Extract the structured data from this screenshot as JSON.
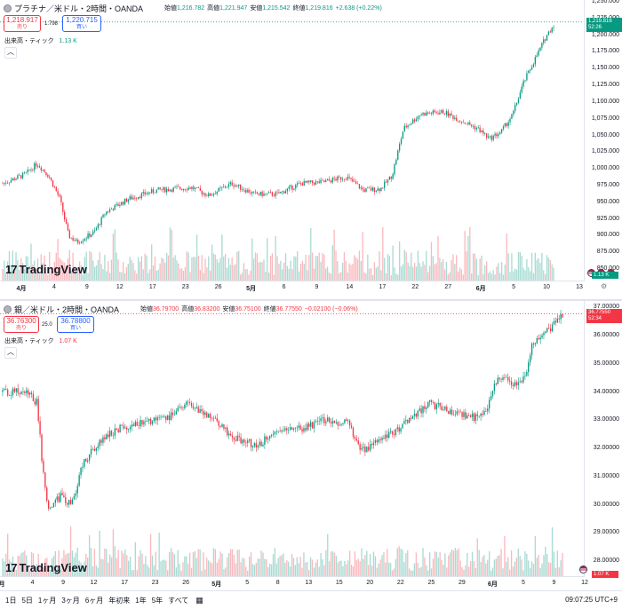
{
  "colors": {
    "up": "#089981",
    "down": "#f23645",
    "accent": "#2962ff"
  },
  "pane1": {
    "title": "プラチナ／米ドル・2時間・OANDA",
    "ohlc": [
      {
        "k": "始値",
        "v": "1,216.782"
      },
      {
        "k": "高値",
        "v": "1,221.947"
      },
      {
        "k": "安値",
        "v": "1,215.542"
      },
      {
        "k": "終値",
        "v": "1,219.816"
      },
      {
        "k": "",
        "v": "+2.638 (+0.22%)"
      }
    ],
    "sell": {
      "price": "1,218.917",
      "label": "売り"
    },
    "spread": "1.798",
    "buy": {
      "price": "1,220.715",
      "label": "買い"
    },
    "volume": {
      "label": "出来高・ティック",
      "value": "1.13 K",
      "tag": "1.13 K"
    },
    "last_price": {
      "price": "1,219.816",
      "countdown": "52:26"
    },
    "price_ticks": [
      "1,250.000",
      "1,225.000",
      "1,200.000",
      "1,175.000",
      "1,150.000",
      "1,125.000",
      "1,100.000",
      "1,075.000",
      "1,050.000",
      "1,025.000",
      "1,000.000",
      "975.000",
      "950.000",
      "925.000",
      "900.000",
      "875.000",
      "850.000"
    ],
    "price_range": [
      850,
      1250
    ],
    "time_ticks": [
      {
        "t": "4月",
        "bold": true
      },
      {
        "t": "4"
      },
      {
        "t": "9"
      },
      {
        "t": "12"
      },
      {
        "t": "17"
      },
      {
        "t": "23"
      },
      {
        "t": "26"
      },
      {
        "t": "5月",
        "bold": true
      },
      {
        "t": "6"
      },
      {
        "t": "9"
      },
      {
        "t": "14"
      },
      {
        "t": "17"
      },
      {
        "t": "22"
      },
      {
        "t": "27"
      },
      {
        "t": "6月",
        "bold": true
      },
      {
        "t": "5"
      },
      {
        "t": "10"
      },
      {
        "t": "13"
      }
    ],
    "anchors": [
      [
        0,
        978
      ],
      [
        0.04,
        992
      ],
      [
        0.06,
        1008
      ],
      [
        0.08,
        990
      ],
      [
        0.1,
        955
      ],
      [
        0.115,
        900
      ],
      [
        0.13,
        890
      ],
      [
        0.16,
        905
      ],
      [
        0.18,
        935
      ],
      [
        0.22,
        955
      ],
      [
        0.27,
        968
      ],
      [
        0.33,
        972
      ],
      [
        0.36,
        960
      ],
      [
        0.4,
        978
      ],
      [
        0.44,
        962
      ],
      [
        0.48,
        962
      ],
      [
        0.52,
        978
      ],
      [
        0.56,
        980
      ],
      [
        0.6,
        988
      ],
      [
        0.63,
        968
      ],
      [
        0.66,
        970
      ],
      [
        0.68,
        990
      ],
      [
        0.7,
        1060
      ],
      [
        0.73,
        1082
      ],
      [
        0.77,
        1085
      ],
      [
        0.8,
        1072
      ],
      [
        0.83,
        1060
      ],
      [
        0.85,
        1045
      ],
      [
        0.87,
        1055
      ],
      [
        0.89,
        1080
      ],
      [
        0.91,
        1130
      ],
      [
        0.93,
        1165
      ],
      [
        0.95,
        1200
      ],
      [
        0.965,
        1219
      ]
    ]
  },
  "pane2": {
    "title": "銀／米ドル・2時間・OANDA",
    "ohlc": [
      {
        "k": "始値",
        "v": "36.79700"
      },
      {
        "k": "高値",
        "v": "36.83200"
      },
      {
        "k": "安値",
        "v": "36.75100"
      },
      {
        "k": "終値",
        "v": "36.77550"
      },
      {
        "k": "",
        "v": "−0.02100 (−0.06%)"
      }
    ],
    "sell": {
      "price": "36.76300",
      "label": "売り"
    },
    "spread": "25.0",
    "buy": {
      "price": "36.78800",
      "label": "買い"
    },
    "volume": {
      "label": "出来高・ティック",
      "value": "1.07 K",
      "tag": "1.07 K"
    },
    "last_price": {
      "price": "36.77550",
      "countdown": "52:34"
    },
    "price_ticks": [
      "37.00000",
      "36.00000",
      "35.00000",
      "34.00000",
      "33.00000",
      "32.00000",
      "31.00000",
      "30.00000",
      "29.00000",
      "28.00000"
    ],
    "price_range": [
      27.6,
      37.1
    ],
    "time_ticks": [
      {
        "t": "月",
        "bold": true
      },
      {
        "t": "4"
      },
      {
        "t": "9"
      },
      {
        "t": "12"
      },
      {
        "t": "17"
      },
      {
        "t": "23"
      },
      {
        "t": "26"
      },
      {
        "t": "5月",
        "bold": true
      },
      {
        "t": "5"
      },
      {
        "t": "8"
      },
      {
        "t": "13"
      },
      {
        "t": "15"
      },
      {
        "t": "20"
      },
      {
        "t": "22"
      },
      {
        "t": "25"
      },
      {
        "t": "29"
      },
      {
        "t": "6月",
        "bold": true
      },
      {
        "t": "5"
      },
      {
        "t": "9"
      },
      {
        "t": "12"
      }
    ],
    "anchors": [
      [
        0,
        34.0
      ],
      [
        0.04,
        34.0
      ],
      [
        0.06,
        33.6
      ],
      [
        0.07,
        31.2
      ],
      [
        0.08,
        29.8
      ],
      [
        0.1,
        30.3
      ],
      [
        0.12,
        30.0
      ],
      [
        0.14,
        31.5
      ],
      [
        0.17,
        32.3
      ],
      [
        0.2,
        32.7
      ],
      [
        0.24,
        32.9
      ],
      [
        0.28,
        33.0
      ],
      [
        0.32,
        33.6
      ],
      [
        0.36,
        33.1
      ],
      [
        0.4,
        32.4
      ],
      [
        0.44,
        32.1
      ],
      [
        0.48,
        32.6
      ],
      [
        0.52,
        32.7
      ],
      [
        0.56,
        33.0
      ],
      [
        0.6,
        32.9
      ],
      [
        0.62,
        31.9
      ],
      [
        0.66,
        32.3
      ],
      [
        0.7,
        32.9
      ],
      [
        0.74,
        33.6
      ],
      [
        0.78,
        33.3
      ],
      [
        0.82,
        33.1
      ],
      [
        0.84,
        33.4
      ],
      [
        0.86,
        34.6
      ],
      [
        0.89,
        34.3
      ],
      [
        0.91,
        34.6
      ],
      [
        0.92,
        35.8
      ],
      [
        0.94,
        36.0
      ],
      [
        0.96,
        36.5
      ],
      [
        0.975,
        36.78
      ]
    ]
  },
  "bottom": {
    "ranges": [
      "1日",
      "5日",
      "1ヶ月",
      "3ヶ月",
      "6ヶ月",
      "年初来",
      "1年",
      "5年",
      "すべて"
    ],
    "clock": "09:07:25 UTC+9"
  },
  "branding": "TradingView"
}
